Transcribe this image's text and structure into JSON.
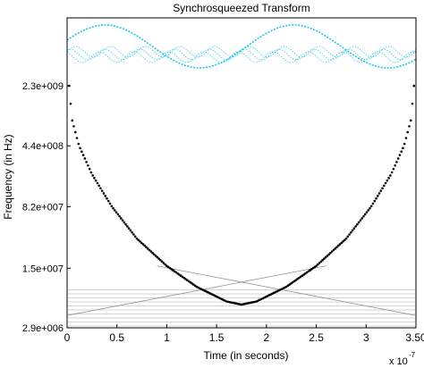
{
  "chart_data": {
    "type": "scatter",
    "title": "Synchrosqueezed Transform",
    "xlabel": "Time (in seconds)",
    "ylabel": "Frequency (in Hz)",
    "x_exponent_label": "x 10",
    "x_exponent_power": "-7",
    "xlim": [
      0,
      3.5
    ],
    "x_ticks": [
      "0",
      "0.5",
      "1",
      "1.5",
      "2",
      "2.5",
      "3",
      "3.50"
    ],
    "x_tick_values": [
      0,
      0.5,
      1,
      1.5,
      2,
      2.5,
      3,
      3.5
    ],
    "y_scale": "log",
    "ylim": [
      2900000,
      15000000000
    ],
    "y_ticks": [
      "2.9e+006",
      "1.5e+007",
      "8.2e+007",
      "4.4e+008",
      "2.3e+009"
    ],
    "y_tick_values": [
      2900000,
      15000000,
      82000000,
      440000000,
      2300000000
    ],
    "grid": false,
    "colors": {
      "axes": "#000000",
      "ridge": "#000000",
      "fill_lines": "#aaaaaa",
      "high_band": "#19c6e6"
    },
    "series": [
      {
        "name": "",
        "description_ignored": true,
        "points": [
          [
            0.02,
            2300000000
          ],
          [
            0.05,
            900000000
          ],
          [
            0.12,
            440000000
          ],
          [
            0.25,
            200000000
          ],
          [
            0.45,
            82000000
          ],
          [
            0.7,
            34000000
          ],
          [
            1.0,
            16000000
          ],
          [
            1.3,
            9000000
          ],
          [
            1.6,
            6000000
          ],
          [
            1.75,
            5500000
          ],
          [
            1.9,
            6000000
          ],
          [
            2.2,
            9000000
          ],
          [
            2.5,
            16000000
          ],
          [
            2.8,
            34000000
          ],
          [
            3.05,
            82000000
          ],
          [
            3.25,
            200000000
          ],
          [
            3.38,
            440000000
          ],
          [
            3.45,
            900000000
          ],
          [
            3.48,
            2300000000
          ]
        ]
      }
    ]
  }
}
